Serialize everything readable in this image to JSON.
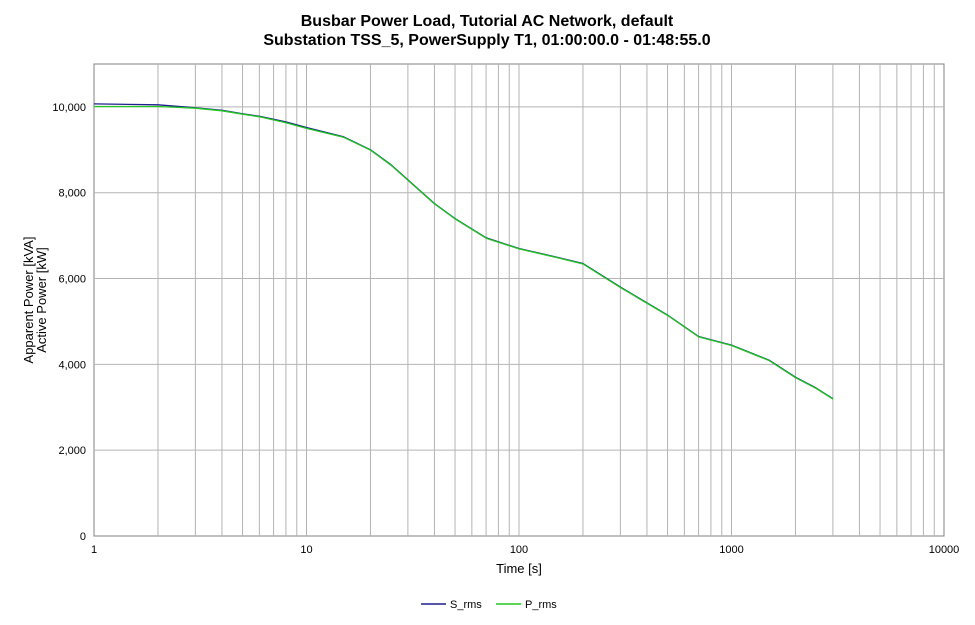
{
  "chart_data": {
    "type": "line",
    "title": "Busbar Power Load, Tutorial AC Network, default",
    "subtitle": "Substation TSS_5, PowerSupply T1, 01:00:00.0 - 01:48:55.0",
    "xlabel": "Time [s]",
    "ylabel": [
      "Apparent Power [kVA]",
      "Active Power [kW]"
    ],
    "x_scale": "log",
    "xlim": [
      1,
      10000
    ],
    "ylim": [
      0,
      11000
    ],
    "x_tick_labels": [
      "1",
      "10",
      "100",
      "1000",
      "10000"
    ],
    "y_tick_labels": [
      "0",
      "2,000",
      "4,000",
      "6,000",
      "8,000",
      "10,000"
    ],
    "grid": true,
    "legend_position": "bottom-center",
    "series": [
      {
        "name": "S_rms",
        "color": "#1f1f8f",
        "x": [
          1,
          2,
          3,
          4,
          5,
          6,
          8,
          10,
          15,
          20,
          25,
          30,
          40,
          50,
          70,
          100,
          150,
          200,
          300,
          500,
          700,
          1000,
          1500,
          2000,
          2500,
          3000
        ],
        "y": [
          10070,
          10050,
          9980,
          9920,
          9840,
          9780,
          9650,
          9520,
          9300,
          9000,
          8650,
          8300,
          7750,
          7400,
          6950,
          6700,
          6500,
          6350,
          5800,
          5150,
          4650,
          4450,
          4100,
          3700,
          3450,
          3200
        ]
      },
      {
        "name": "P_rms",
        "color": "#22c822",
        "x": [
          1,
          2,
          3,
          4,
          5,
          6,
          8,
          10,
          15,
          20,
          25,
          30,
          40,
          50,
          70,
          100,
          150,
          200,
          300,
          500,
          700,
          1000,
          1500,
          2000,
          2500,
          3000
        ],
        "y": [
          10010,
          10010,
          9970,
          9910,
          9830,
          9770,
          9630,
          9500,
          9290,
          8990,
          8640,
          8290,
          7740,
          7390,
          6940,
          6690,
          6490,
          6340,
          5790,
          5140,
          4640,
          4440,
          4090,
          3690,
          3440,
          3190
        ]
      }
    ]
  }
}
